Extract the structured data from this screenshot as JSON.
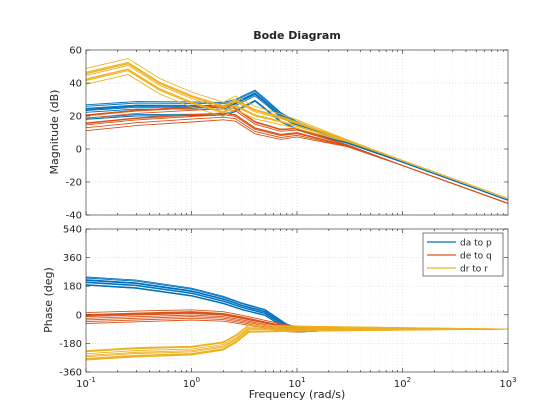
{
  "chart_data": {
    "type": "line",
    "title": "Bode Diagram",
    "xlabel": "Frequency  (rad/s)",
    "x_scale": "log",
    "xlim": [
      0.1,
      1000
    ],
    "x_ticks": [
      {
        "value": 0.1,
        "base": "10",
        "exp": "-1"
      },
      {
        "value": 1,
        "base": "10",
        "exp": "0"
      },
      {
        "value": 10,
        "base": "10",
        "exp": "1"
      },
      {
        "value": 100,
        "base": "10",
        "exp": "2"
      },
      {
        "value": 1000,
        "base": "10",
        "exp": "3"
      }
    ],
    "grid": true,
    "legend": {
      "placement": "top-right of phase plot",
      "entries": [
        {
          "label": "da to p",
          "color": "#0072BD"
        },
        {
          "label": "de to q",
          "color": "#D95319"
        },
        {
          "label": "dr to r",
          "color": "#EDB120"
        }
      ]
    },
    "magnitude": {
      "ylabel": "Magnitude (dB)",
      "ylim": [
        -40,
        60
      ],
      "y_ticks": [
        -40,
        -20,
        0,
        20,
        40,
        60
      ],
      "series": [
        {
          "name": "da to p",
          "color": "#0072BD",
          "x": [
            0.1,
            0.3,
            1,
            2,
            2.6,
            4,
            5,
            7,
            10,
            30,
            100,
            1000
          ],
          "y": [
            22,
            24,
            24,
            24,
            26,
            32,
            27,
            19,
            14,
            4,
            -8,
            -31
          ]
        },
        {
          "name": "de to q",
          "color": "#D95319",
          "x": [
            0.1,
            0.3,
            1,
            2,
            2.6,
            4,
            7,
            10,
            30,
            100,
            1000
          ],
          "y": [
            16,
            19,
            21,
            22,
            21,
            13,
            9,
            10,
            2,
            -10,
            -33
          ]
        },
        {
          "name": "dr to r",
          "color": "#EDB120",
          "x": [
            0.1,
            0.25,
            0.5,
            1,
            2,
            2.6,
            4,
            7,
            10,
            30,
            100,
            1000
          ],
          "y": [
            44,
            50,
            38,
            30,
            24,
            28,
            22,
            18,
            15,
            5,
            -7,
            -30
          ]
        }
      ]
    },
    "phase": {
      "ylabel": "Phase (deg)",
      "ylim": [
        -360,
        540
      ],
      "y_ticks": [
        -360,
        -180,
        0,
        180,
        360,
        540
      ],
      "series": [
        {
          "name": "da to p",
          "color": "#0072BD",
          "x": [
            0.1,
            0.3,
            1,
            2,
            3,
            5,
            8,
            10,
            30,
            1000
          ],
          "y": [
            220,
            200,
            150,
            100,
            60,
            20,
            -70,
            -90,
            -90,
            -90
          ]
        },
        {
          "name": "de to q",
          "color": "#D95319",
          "x": [
            0.1,
            0.3,
            1,
            2,
            3,
            5,
            8,
            10,
            30,
            1000
          ],
          "y": [
            -20,
            -10,
            0,
            -10,
            -30,
            -60,
            -85,
            -90,
            -90,
            -90
          ]
        },
        {
          "name": "dr to r",
          "color": "#EDB120",
          "x": [
            0.1,
            0.3,
            1,
            2,
            2.7,
            3.5,
            10,
            1000
          ],
          "y": [
            -260,
            -240,
            -230,
            -200,
            -150,
            -90,
            -90,
            -90
          ]
        }
      ]
    }
  }
}
